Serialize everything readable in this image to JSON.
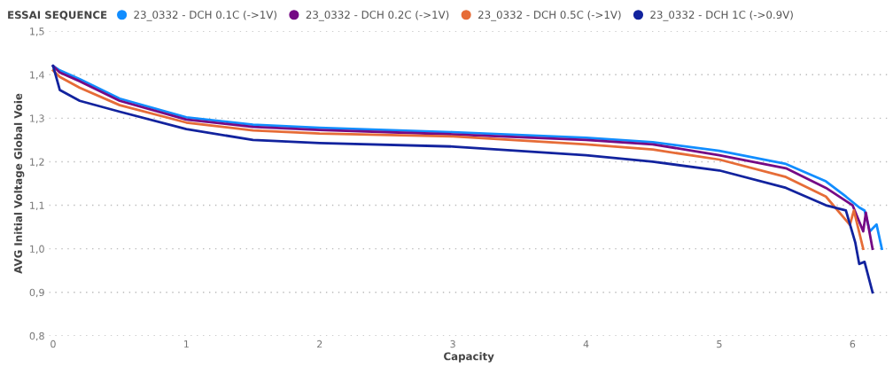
{
  "chart_data": {
    "type": "line",
    "xlabel": "Capacity",
    "ylabel": "AVG Initial Voltage Global Voie",
    "legend_title": "ESSAI SEQUENCE",
    "legend": "top left",
    "grid": "y",
    "marker": "none",
    "line_style": "solid",
    "xlim": [
      -0.03,
      6.27
    ],
    "xticks": [
      0,
      1,
      2,
      3,
      4,
      5,
      6
    ],
    "ylim": [
      0.8,
      1.5
    ],
    "yticks": [
      {
        "value": 0.8,
        "label": "0,8"
      },
      {
        "value": 0.9,
        "label": "0,9"
      },
      {
        "value": 1.0,
        "label": "1,0"
      },
      {
        "value": 1.1,
        "label": "1,1"
      },
      {
        "value": 1.2,
        "label": "1,2"
      },
      {
        "value": 1.3,
        "label": "1,3"
      },
      {
        "value": 1.4,
        "label": "1,4"
      },
      {
        "value": 1.5,
        "label": "1,5"
      }
    ],
    "series": [
      {
        "name": "23_0332 - DCH 0.1C (->1V)",
        "color": "#118dff",
        "x": [
          0,
          0.05,
          0.2,
          0.5,
          1,
          1.5,
          2,
          3,
          4,
          4.5,
          5,
          5.5,
          5.8,
          5.95,
          6.05,
          6.09,
          6.13,
          6.18,
          6.22
        ],
        "values": [
          1.42,
          1.41,
          1.39,
          1.345,
          1.302,
          1.285,
          1.278,
          1.268,
          1.255,
          1.245,
          1.225,
          1.195,
          1.155,
          1.12,
          1.095,
          1.088,
          1.04,
          1.056,
          1.0
        ]
      },
      {
        "name": "23_0332 - DCH 0.2C (->1V)",
        "color": "#750985",
        "x": [
          0,
          0.05,
          0.2,
          0.5,
          1,
          1.5,
          2,
          3,
          4,
          4.5,
          5,
          5.5,
          5.8,
          6.0,
          6.08,
          6.1,
          6.15
        ],
        "values": [
          1.42,
          1.405,
          1.385,
          1.34,
          1.297,
          1.28,
          1.273,
          1.263,
          1.25,
          1.24,
          1.215,
          1.185,
          1.14,
          1.1,
          1.04,
          1.083,
          1.0
        ]
      },
      {
        "name": "23_0332 - DCH 0.5C (->1V)",
        "color": "#e66c37",
        "x": [
          0,
          0.05,
          0.2,
          0.5,
          1,
          1.5,
          2,
          3,
          4,
          4.5,
          5,
          5.5,
          5.8,
          5.98,
          6.01,
          6.08
        ],
        "values": [
          1.41,
          1.395,
          1.37,
          1.33,
          1.29,
          1.272,
          1.265,
          1.258,
          1.24,
          1.228,
          1.205,
          1.165,
          1.12,
          1.055,
          1.088,
          1.0
        ]
      },
      {
        "name": "23_0332 - DCH 1C (->0.9V)",
        "color": "#12239e",
        "x": [
          0,
          0.05,
          0.2,
          0.5,
          1,
          1.5,
          2,
          3,
          4,
          4.5,
          5,
          5.5,
          5.8,
          5.95,
          6.02,
          6.05,
          6.09,
          6.15
        ],
        "values": [
          1.42,
          1.365,
          1.34,
          1.315,
          1.275,
          1.25,
          1.243,
          1.235,
          1.215,
          1.2,
          1.18,
          1.14,
          1.1,
          1.088,
          1.015,
          0.965,
          0.97,
          0.9
        ]
      }
    ]
  }
}
